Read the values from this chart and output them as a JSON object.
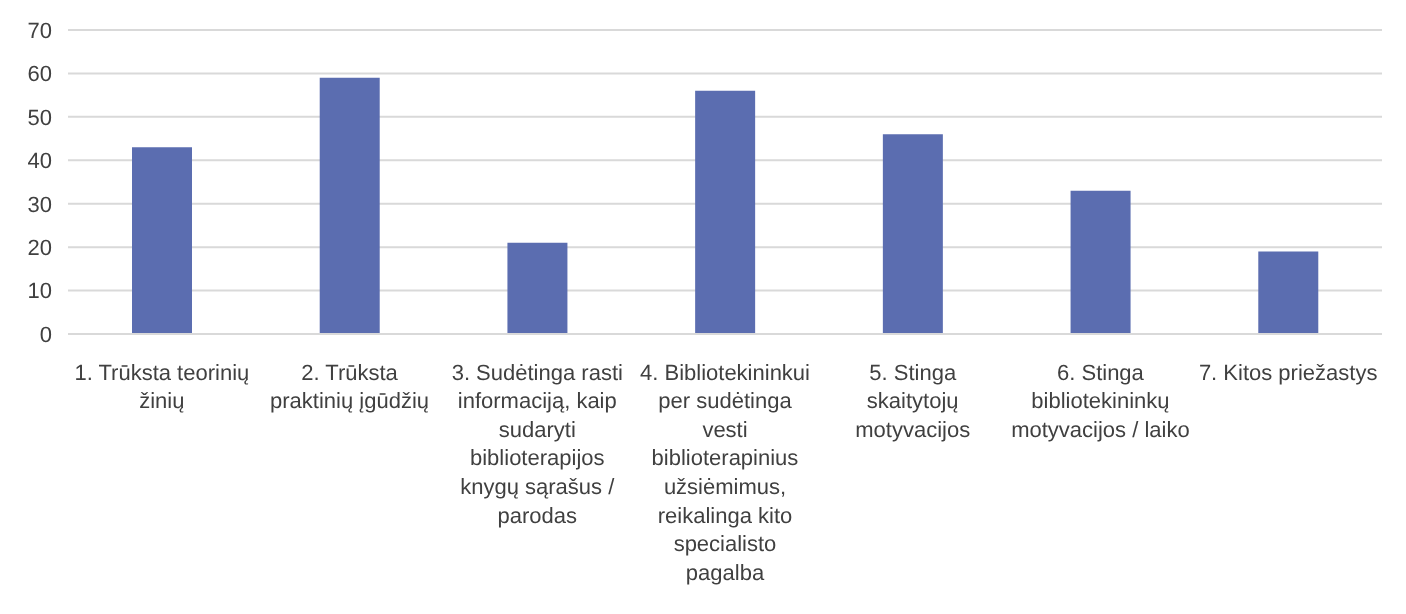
{
  "chart_data": {
    "type": "bar",
    "categories": [
      "1. Trūksta teorinių žinių",
      "2. Trūksta praktinių įgūdžių",
      "3. Sudėtinga rasti informaciją, kaip sudaryti biblioterapijos knygų sąrašus / parodas",
      "4. Bibliotekininkui per sudėtinga vesti biblioterapinius užsiėmimus, reikalinga kito specialisto pagalba",
      "5. Stinga skaitytojų motyvacijos",
      "6. Stinga bibliotekininkų motyvacijos / laiko",
      "7. Kitos priežastys"
    ],
    "values": [
      43,
      59,
      21,
      56,
      46,
      33,
      19
    ],
    "color": "#5b6db0",
    "ylim": [
      0,
      70
    ],
    "yticks": [
      0,
      10,
      20,
      30,
      40,
      50,
      60,
      70
    ],
    "grid": "y",
    "legend": false
  }
}
